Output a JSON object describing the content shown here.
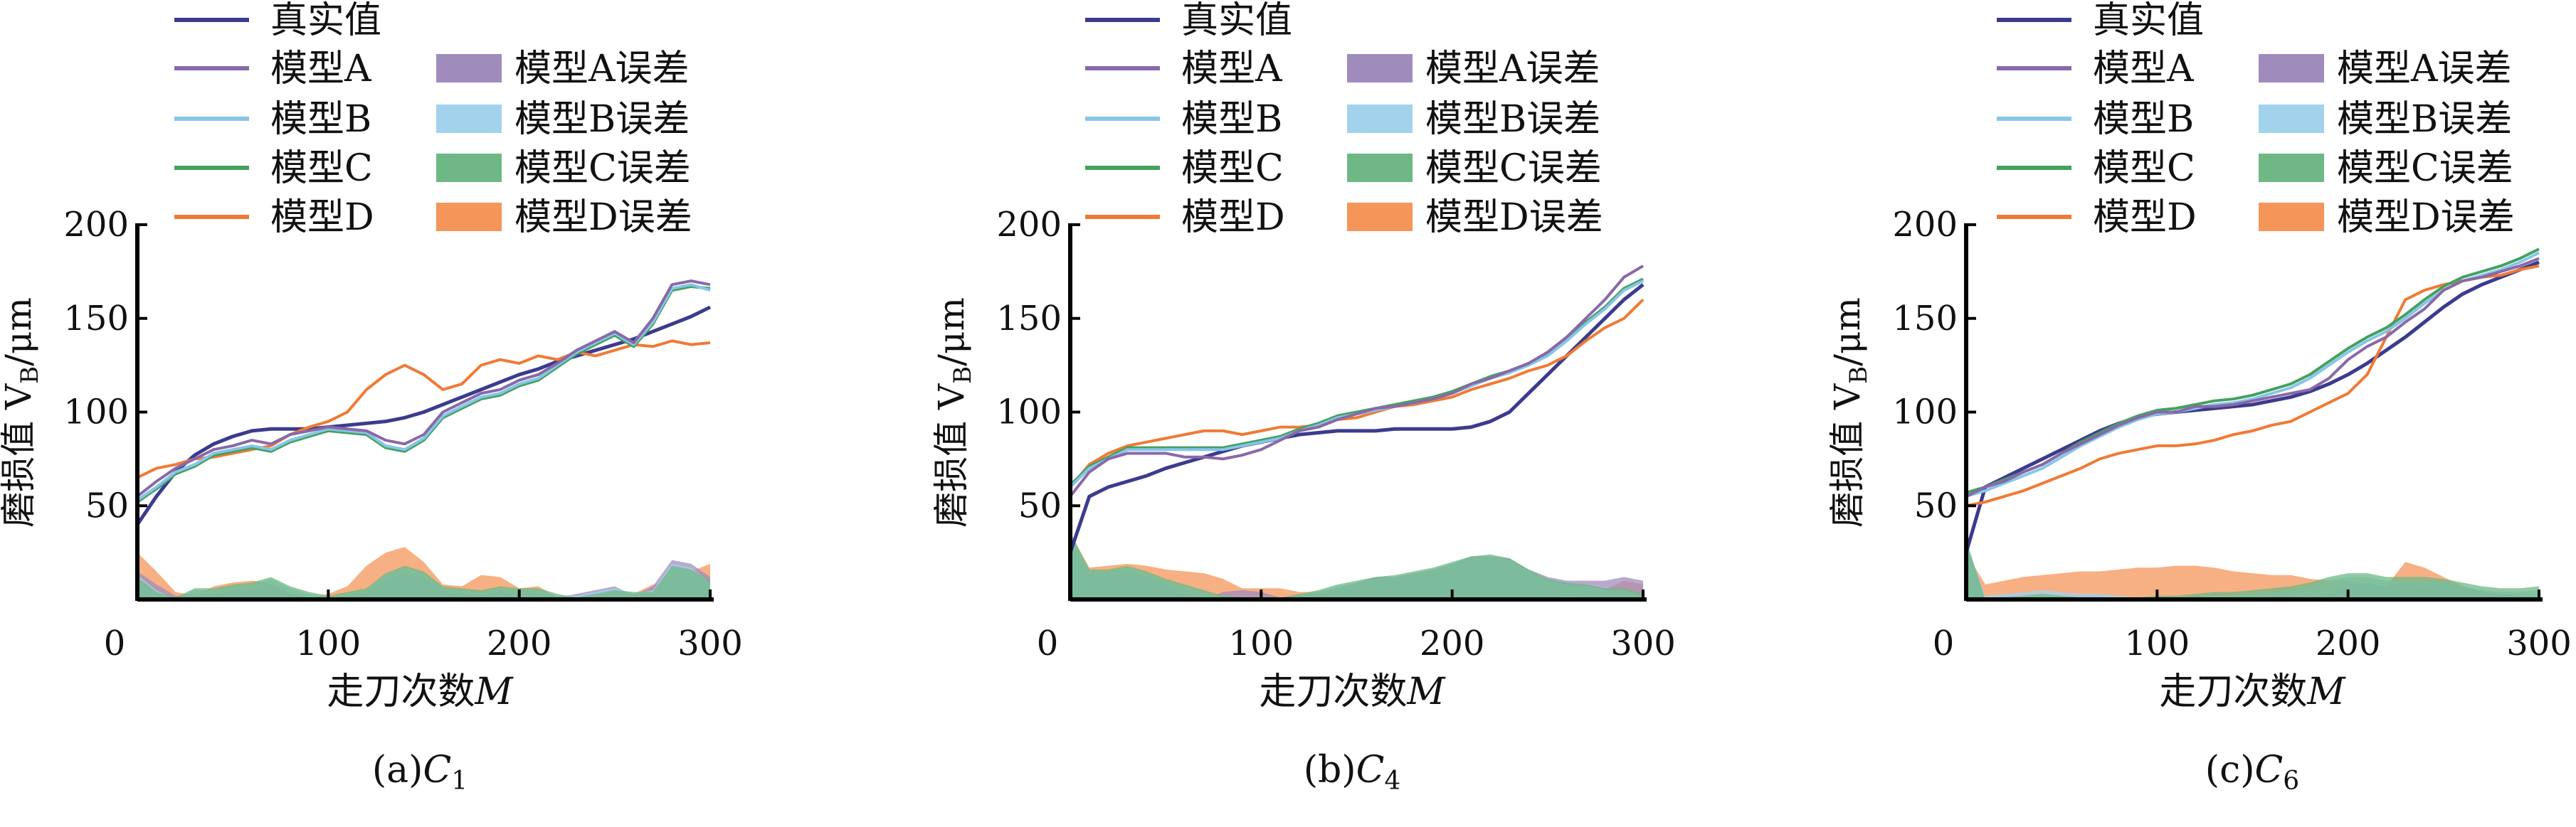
{
  "chart_data": [
    {
      "type": "line",
      "caption_prefix": "(a)",
      "caption_var": "C",
      "caption_sub": "1",
      "xlabel": "走刀次数",
      "xlabel_var": "M",
      "ylabel": "磨损值 V",
      "ylabel_sub": "B",
      "ylabel_unit": "/μm",
      "xlim": [
        0,
        300
      ],
      "ylim": [
        0,
        200
      ],
      "xticks": [
        "0",
        "100",
        "200",
        "300"
      ],
      "yticks": [
        "50",
        "100",
        "150",
        "200"
      ],
      "ytick_values": [
        50,
        100,
        150,
        200
      ],
      "xtick_values": [
        0,
        100,
        200,
        300
      ],
      "x": [
        0,
        10,
        20,
        30,
        40,
        50,
        60,
        70,
        80,
        90,
        100,
        110,
        120,
        130,
        140,
        150,
        160,
        170,
        180,
        190,
        200,
        210,
        220,
        230,
        240,
        250,
        260,
        270,
        280,
        290,
        300
      ],
      "series": [
        {
          "name": "真实值",
          "values": [
            40,
            55,
            68,
            77,
            83,
            87,
            90,
            91,
            91,
            91,
            92,
            93,
            94,
            95,
            97,
            100,
            104,
            108,
            112,
            116,
            120,
            123,
            127,
            130,
            133,
            136,
            139,
            143,
            147,
            151,
            156
          ]
        },
        {
          "name": "模型A",
          "values": [
            55,
            63,
            70,
            75,
            80,
            82,
            85,
            83,
            88,
            90,
            92,
            91,
            90,
            85,
            83,
            88,
            100,
            105,
            110,
            112,
            117,
            120,
            126,
            133,
            138,
            143,
            137,
            150,
            168,
            170,
            168
          ]
        },
        {
          "name": "模型B",
          "values": [
            53,
            60,
            68,
            72,
            78,
            80,
            82,
            80,
            85,
            88,
            91,
            90,
            89,
            82,
            80,
            86,
            98,
            103,
            108,
            110,
            115,
            118,
            125,
            132,
            137,
            142,
            136,
            148,
            166,
            168,
            165
          ]
        },
        {
          "name": "模型C",
          "values": [
            52,
            59,
            67,
            71,
            77,
            79,
            81,
            79,
            84,
            87,
            90,
            89,
            88,
            81,
            79,
            85,
            97,
            102,
            107,
            109,
            114,
            117,
            124,
            131,
            136,
            141,
            135,
            147,
            165,
            167,
            166
          ]
        },
        {
          "name": "模型D",
          "values": [
            65,
            70,
            72,
            75,
            76,
            78,
            80,
            82,
            88,
            92,
            95,
            100,
            112,
            120,
            125,
            120,
            112,
            115,
            125,
            128,
            126,
            130,
            128,
            132,
            130,
            133,
            136,
            135,
            138,
            136,
            137
          ]
        }
      ]
    },
    {
      "type": "line",
      "caption_prefix": "(b)",
      "caption_var": "C",
      "caption_sub": "4",
      "xlabel": "走刀次数",
      "xlabel_var": "M",
      "ylabel": "磨损值 V",
      "ylabel_sub": "B",
      "ylabel_unit": "/μm",
      "xlim": [
        0,
        300
      ],
      "ylim": [
        0,
        200
      ],
      "xticks": [
        "0",
        "100",
        "200",
        "300"
      ],
      "yticks": [
        "50",
        "100",
        "150",
        "200"
      ],
      "ytick_values": [
        50,
        100,
        150,
        200
      ],
      "xtick_values": [
        0,
        100,
        200,
        300
      ],
      "x": [
        0,
        10,
        20,
        30,
        40,
        50,
        60,
        70,
        80,
        90,
        100,
        110,
        120,
        130,
        140,
        150,
        160,
        170,
        180,
        190,
        200,
        210,
        220,
        230,
        240,
        250,
        260,
        270,
        280,
        290,
        300
      ],
      "series": [
        {
          "name": "真实值",
          "values": [
            25,
            55,
            60,
            63,
            66,
            70,
            73,
            76,
            79,
            82,
            84,
            86,
            88,
            89,
            90,
            90,
            90,
            91,
            91,
            91,
            91,
            92,
            95,
            100,
            110,
            120,
            130,
            140,
            150,
            160,
            168
          ]
        },
        {
          "name": "模型A",
          "values": [
            55,
            68,
            75,
            78,
            78,
            78,
            76,
            76,
            75,
            77,
            80,
            85,
            90,
            92,
            96,
            99,
            102,
            103,
            105,
            107,
            110,
            115,
            118,
            122,
            126,
            132,
            140,
            150,
            160,
            172,
            178
          ]
        },
        {
          "name": "模型B",
          "values": [
            60,
            70,
            75,
            80,
            80,
            80,
            80,
            80,
            80,
            82,
            84,
            86,
            90,
            93,
            97,
            99,
            101,
            103,
            105,
            107,
            110,
            114,
            118,
            121,
            125,
            130,
            138,
            147,
            155,
            165,
            170
          ]
        },
        {
          "name": "模型C",
          "values": [
            61,
            71,
            76,
            81,
            81,
            81,
            81,
            81,
            81,
            83,
            85,
            87,
            91,
            94,
            98,
            100,
            102,
            104,
            106,
            108,
            111,
            115,
            119,
            122,
            126,
            131,
            139,
            148,
            156,
            166,
            171
          ]
        },
        {
          "name": "模型D",
          "values": [
            60,
            72,
            78,
            82,
            84,
            86,
            88,
            90,
            90,
            88,
            90,
            92,
            92,
            93,
            96,
            97,
            100,
            103,
            104,
            106,
            108,
            112,
            115,
            118,
            122,
            125,
            130,
            138,
            145,
            150,
            160
          ]
        }
      ]
    },
    {
      "type": "line",
      "caption_prefix": "(c)",
      "caption_var": "C",
      "caption_sub": "6",
      "xlabel": "走刀次数",
      "xlabel_var": "M",
      "ylabel": "磨损值 V",
      "ylabel_sub": "B",
      "ylabel_unit": "/μm",
      "xlim": [
        0,
        300
      ],
      "ylim": [
        0,
        200
      ],
      "xticks": [
        "0",
        "100",
        "200",
        "300"
      ],
      "yticks": [
        "50",
        "100",
        "150",
        "200"
      ],
      "ytick_values": [
        50,
        100,
        150,
        200
      ],
      "xtick_values": [
        0,
        100,
        200,
        300
      ],
      "x": [
        0,
        10,
        20,
        30,
        40,
        50,
        60,
        70,
        80,
        90,
        100,
        110,
        120,
        130,
        140,
        150,
        160,
        170,
        180,
        190,
        200,
        210,
        220,
        230,
        240,
        250,
        260,
        270,
        280,
        290,
        300
      ],
      "series": [
        {
          "name": "真实值",
          "values": [
            25,
            60,
            65,
            70,
            75,
            80,
            85,
            90,
            94,
            97,
            99,
            100,
            101,
            102,
            103,
            104,
            106,
            108,
            111,
            115,
            120,
            126,
            133,
            140,
            148,
            156,
            163,
            168,
            172,
            176,
            180
          ]
        },
        {
          "name": "模型A",
          "values": [
            55,
            60,
            63,
            68,
            72,
            78,
            83,
            88,
            93,
            97,
            100,
            100,
            103,
            103,
            104,
            106,
            108,
            110,
            112,
            118,
            128,
            135,
            140,
            148,
            155,
            165,
            170,
            172,
            175,
            178,
            182
          ]
        },
        {
          "name": "模型B",
          "values": [
            55,
            58,
            62,
            66,
            70,
            76,
            82,
            87,
            92,
            96,
            99,
            100,
            102,
            104,
            105,
            107,
            110,
            113,
            118,
            125,
            132,
            138,
            143,
            150,
            158,
            165,
            170,
            173,
            176,
            180,
            185
          ]
        },
        {
          "name": "模型C",
          "values": [
            57,
            60,
            64,
            68,
            72,
            78,
            84,
            89,
            94,
            98,
            101,
            102,
            104,
            106,
            107,
            109,
            112,
            115,
            120,
            127,
            134,
            140,
            145,
            152,
            160,
            167,
            172,
            175,
            178,
            182,
            187
          ]
        },
        {
          "name": "模型D",
          "values": [
            50,
            52,
            55,
            58,
            62,
            66,
            70,
            75,
            78,
            80,
            82,
            82,
            83,
            85,
            88,
            90,
            93,
            95,
            100,
            105,
            110,
            120,
            140,
            160,
            165,
            168,
            170,
            172,
            173,
            176,
            178
          ]
        }
      ]
    }
  ],
  "legend": {
    "lines": [
      "真实值",
      "模型A",
      "模型B",
      "模型C",
      "模型D"
    ],
    "areas": [
      "模型A误差",
      "模型B误差",
      "模型C误差",
      "模型D误差"
    ]
  },
  "colors": {
    "true": "#3b3b8e",
    "A": "#8a68a8",
    "B": "#86c6e8",
    "C": "#45a060",
    "D": "#f07a35",
    "A_err": "#a08cbc",
    "B_err": "#a2d2ec",
    "C_err": "#6db884",
    "D_err": "#f4955a"
  }
}
